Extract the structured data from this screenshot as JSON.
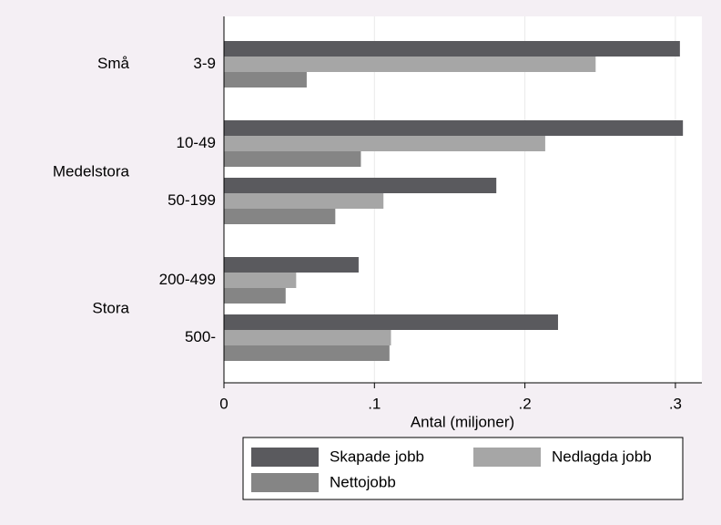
{
  "chart_data": {
    "type": "hbar",
    "x_label": "Antal (miljoner)",
    "groups": [
      {
        "label": "Små",
        "categories": [
          "3-9"
        ]
      },
      {
        "label": "Medelstora",
        "categories": [
          "10-49",
          "50-199"
        ]
      },
      {
        "label": "Stora",
        "categories": [
          "200-499",
          "500-"
        ]
      }
    ],
    "series": [
      {
        "name": "Skapade jobb",
        "color": "#5a5a5e",
        "values": [
          0.303,
          0.305,
          0.181,
          0.0895,
          0.222
        ]
      },
      {
        "name": "Nedlagda jobb",
        "color": "#a6a6a6",
        "values": [
          0.247,
          0.2135,
          0.106,
          0.048,
          0.111
        ]
      },
      {
        "name": "Nettojobb",
        "color": "#858585",
        "values": [
          0.055,
          0.091,
          0.074,
          0.041,
          0.11
        ]
      }
    ],
    "xlim": [
      0,
      0.3176
    ],
    "xticks": [
      0,
      {
        "value": 0.1,
        "label": ".1"
      },
      {
        "value": 0.2,
        "label": ".2"
      },
      {
        "value": 0.3,
        "label": ".3"
      }
    ],
    "grid": true
  }
}
